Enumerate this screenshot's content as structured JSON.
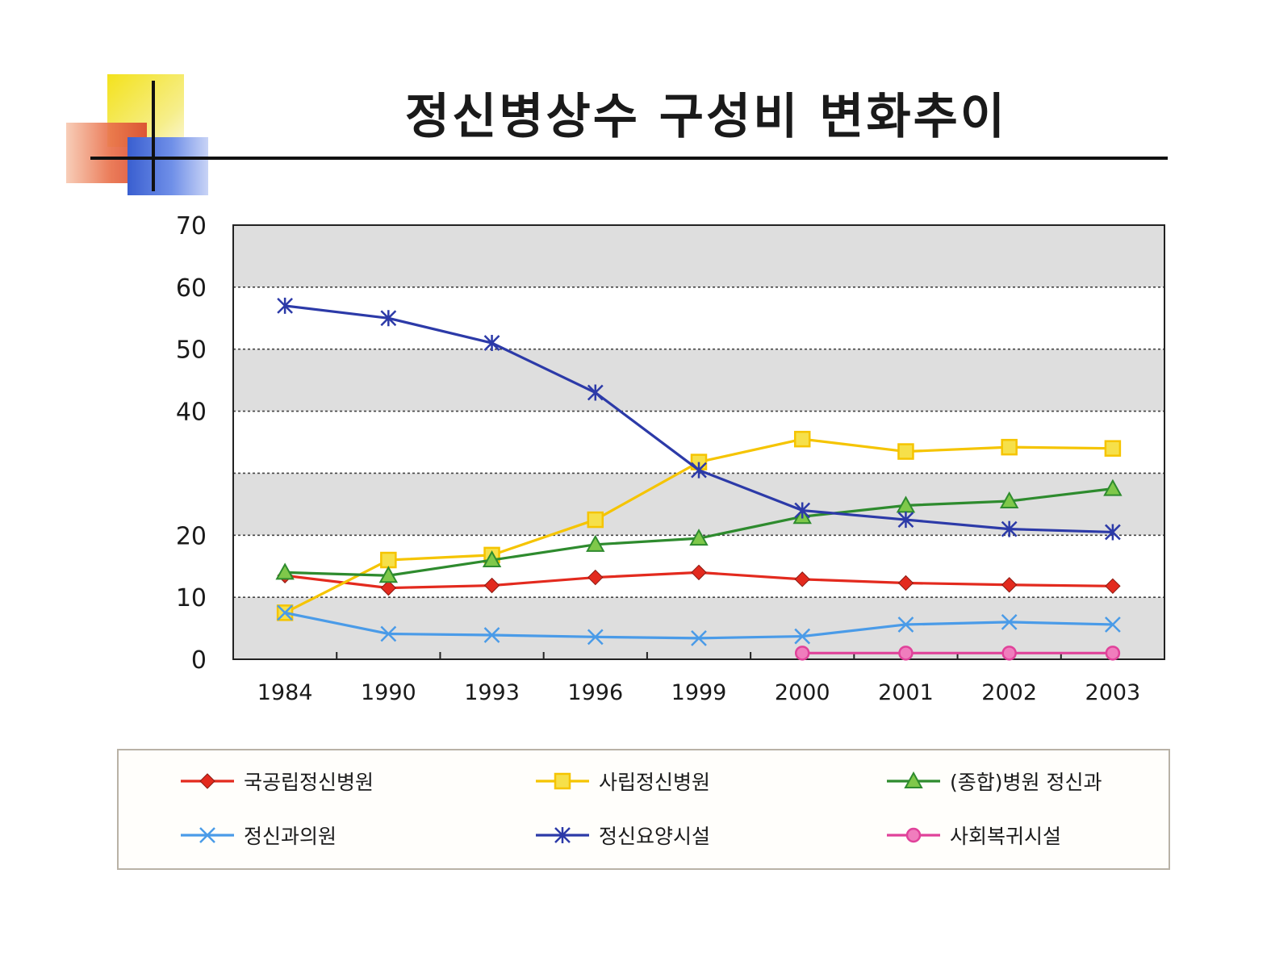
{
  "title": "정신병상수 구성비 변화추이",
  "chart_data": {
    "type": "line",
    "title": "",
    "xlabel": "",
    "ylabel": "",
    "categories": [
      "1984",
      "1990",
      "1993",
      "1996",
      "1999",
      "2000",
      "2001",
      "2002",
      "2003"
    ],
    "y_ticks": [
      "0",
      "10",
      "20",
      "40",
      "50",
      "60",
      "70"
    ],
    "ylim": [
      0,
      70
    ],
    "grid": "dashed horizontal lines at each 10-unit step, alternating grey and white bands",
    "legend_placement": "bottom",
    "series": [
      {
        "name": "국공립정신병원",
        "color": "#e32a1e",
        "marker": "diamond",
        "values": [
          13.5,
          11.5,
          11.9,
          13.2,
          14.0,
          12.9,
          12.3,
          12.0,
          11.8
        ]
      },
      {
        "name": "사립정신병원",
        "color": "#f5c400",
        "marker": "square",
        "values": [
          7.5,
          16.0,
          16.8,
          22.5,
          31.8,
          35.5,
          33.5,
          34.2,
          34.0
        ]
      },
      {
        "name": "(종합)병원 정신과",
        "color": "#2e8b2e",
        "marker": "triangle",
        "values": [
          14.0,
          13.5,
          16.0,
          18.5,
          19.5,
          23.0,
          24.8,
          25.5,
          27.5
        ]
      },
      {
        "name": "정신과의원",
        "color": "#4a9be8",
        "marker": "x",
        "values": [
          7.5,
          4.1,
          3.9,
          3.6,
          3.4,
          3.7,
          5.6,
          6.0,
          5.6
        ]
      },
      {
        "name": "정신요양시설",
        "color": "#2c3aa8",
        "marker": "asterisk",
        "values": [
          57.0,
          55.0,
          51.0,
          43.0,
          30.5,
          24.0,
          22.5,
          21.0,
          20.5
        ]
      },
      {
        "name": "사회복귀시설",
        "color": "#e0429a",
        "marker": "circle",
        "values": [
          null,
          null,
          null,
          null,
          null,
          1.0,
          1.0,
          1.0,
          1.0
        ]
      }
    ]
  }
}
